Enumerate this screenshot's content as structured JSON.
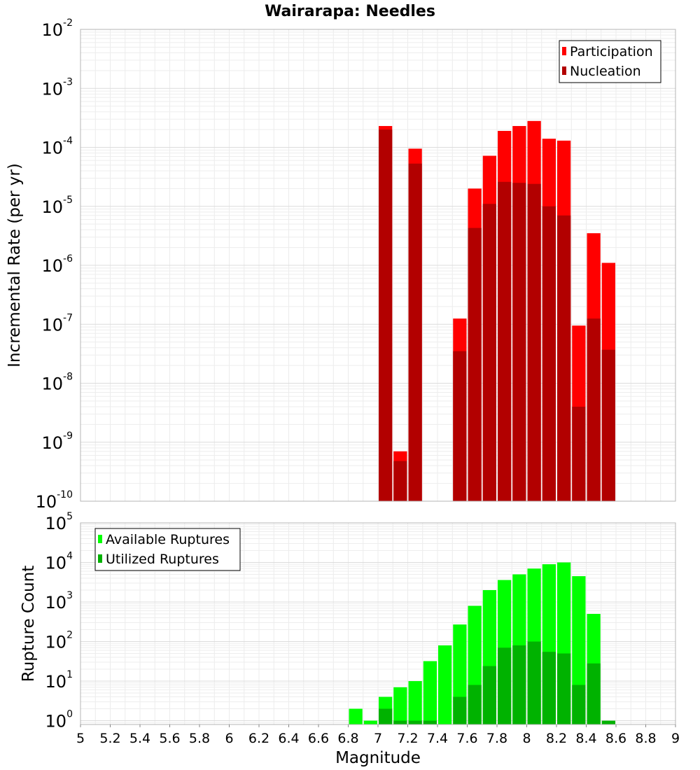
{
  "chart_data": [
    {
      "type": "bar",
      "title": "Wairarapa: Needles",
      "xlabel": "Magnitude",
      "ylabel": "Incremental Rate (per yr)",
      "yscale": "log",
      "ylim": [
        1e-10,
        0.01
      ],
      "xlim": [
        5,
        9
      ],
      "bin_width": 0.1,
      "grid": true,
      "legend_position": "top-right",
      "y_tick_exponents": [
        "-2",
        "-3",
        "-4",
        "-5",
        "-6",
        "-7",
        "-8",
        "-9",
        "-10"
      ],
      "x": [
        7.05,
        7.15,
        7.25,
        7.55,
        7.65,
        7.75,
        7.85,
        7.95,
        8.05,
        8.15,
        8.25,
        8.35,
        8.45,
        8.55
      ],
      "series": [
        {
          "name": "Participation",
          "color": "#ff0000",
          "values": [
            0.00023,
            7e-10,
            9.5e-05,
            1.25e-07,
            2e-05,
            7.2e-05,
            0.00019,
            0.00023,
            0.00028,
            0.00014,
            0.00013,
            9.5e-08,
            3.5e-06,
            1.1e-06
          ]
        },
        {
          "name": "Nucleation",
          "color": "#b20000",
          "values": [
            0.0002,
            4.8e-10,
            5.3e-05,
            3.5e-08,
            4.3e-06,
            1.1e-05,
            2.6e-05,
            2.5e-05,
            2.4e-05,
            1e-05,
            7e-06,
            4e-09,
            1.25e-07,
            3.7e-08
          ]
        }
      ]
    },
    {
      "type": "bar",
      "title": "",
      "xlabel": "Magnitude",
      "ylabel": "Rupture Count",
      "yscale": "log",
      "ylim": [
        0.8,
        100000
      ],
      "xlim": [
        5,
        9
      ],
      "bin_width": 0.1,
      "grid": true,
      "legend_position": "top-left",
      "y_tick_exponents": [
        "0",
        "1",
        "2",
        "3",
        "4",
        "5"
      ],
      "x_ticks": [
        "5",
        "5.2",
        "5.4",
        "5.6",
        "5.8",
        "6",
        "6.2",
        "6.4",
        "6.6",
        "6.8",
        "7",
        "7.2",
        "7.4",
        "7.6",
        "7.8",
        "8",
        "8.2",
        "8.4",
        "8.6",
        "8.8",
        "9"
      ],
      "x": [
        6.85,
        6.95,
        7.05,
        7.15,
        7.25,
        7.35,
        7.45,
        7.55,
        7.65,
        7.75,
        7.85,
        7.95,
        8.05,
        8.15,
        8.25,
        8.35,
        8.45,
        8.55
      ],
      "series": [
        {
          "name": "Available Ruptures",
          "color": "#00ff00",
          "values": [
            2,
            1,
            4,
            7,
            10,
            32,
            80,
            270,
            800,
            2000,
            3600,
            5000,
            7000,
            9000,
            10000,
            4500,
            500,
            null
          ]
        },
        {
          "name": "Utilized Ruptures",
          "color": "#00b200",
          "values": [
            null,
            null,
            2,
            1,
            1,
            1,
            null,
            4,
            8,
            24,
            70,
            80,
            100,
            55,
            50,
            8,
            28,
            1
          ]
        }
      ]
    }
  ]
}
